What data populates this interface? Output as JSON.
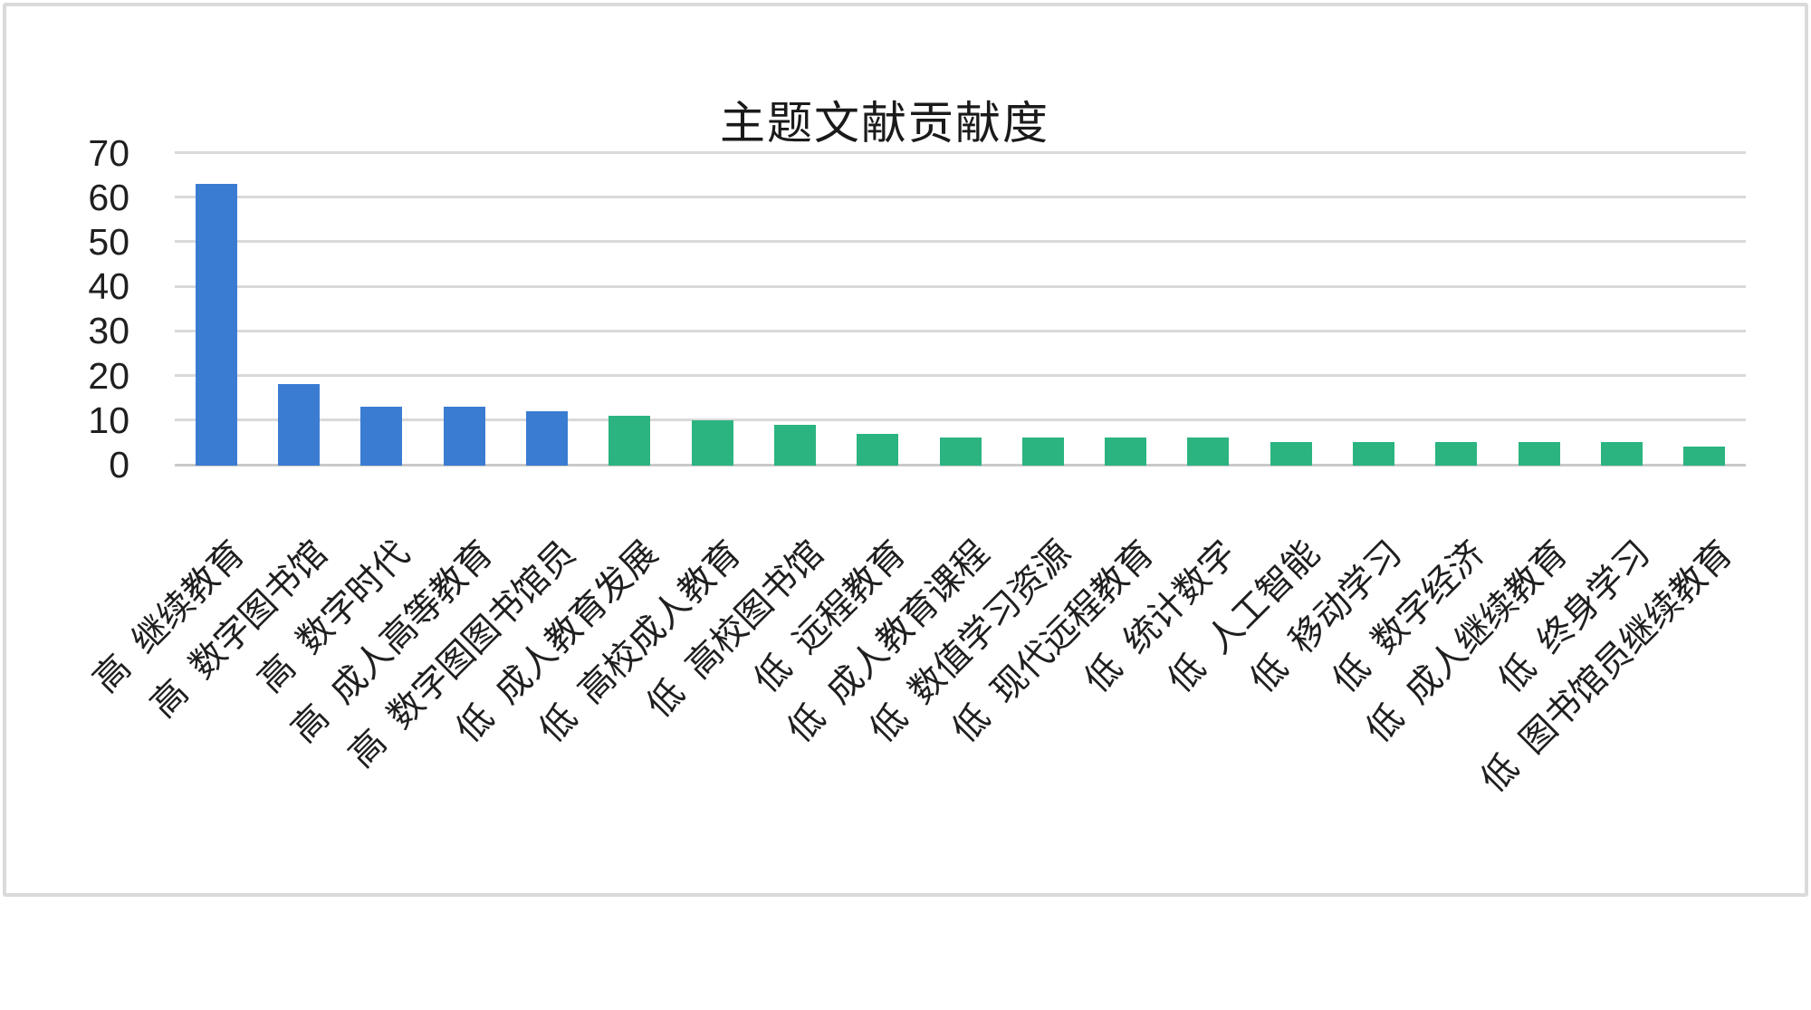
{
  "window": {
    "frame_border_color": "#dadada",
    "background_color": "#ffffff"
  },
  "chart_data": {
    "type": "bar",
    "title": "主题文献贡献度",
    "title_color": "#1a1a1a",
    "xlabel": "",
    "ylabel": "",
    "legend": "none",
    "grid": true,
    "gridline_color": "#d9d9d9",
    "baseline_color": "#c9c9c9",
    "axis_text_color": "#1f1f1f",
    "x_label_rotation_deg": 45,
    "ylim": [
      0,
      70
    ],
    "yticks": [
      0,
      10,
      20,
      30,
      40,
      50,
      60,
      70
    ],
    "categories": [
      "高 继续教育",
      "高 数字图书馆",
      "高 数字时代",
      "高 成人高等教育",
      "高 数字图图书馆员",
      "低 成人教育发展",
      "低 高校成人教育",
      "低 高校图书馆",
      "低 远程教育",
      "低 成人教育课程",
      "低 数值学习资源",
      "低 现代远程教育",
      "低 统计数字",
      "低 人工智能",
      "低 移动学习",
      "低 数字经济",
      "低 成人继续教育",
      "低 终身学习",
      "低 图书馆员继续教育"
    ],
    "values": [
      63,
      18,
      13,
      13,
      12,
      11,
      10,
      9,
      7,
      6,
      6,
      6,
      6,
      5,
      5,
      5,
      5,
      5,
      4
    ],
    "groups": [
      "high",
      "high",
      "high",
      "high",
      "high",
      "low",
      "low",
      "low",
      "low",
      "low",
      "low",
      "low",
      "low",
      "low",
      "low",
      "low",
      "low",
      "low",
      "low"
    ],
    "series_colors": {
      "high": "#3a7cd2",
      "low": "#2bb480"
    }
  }
}
